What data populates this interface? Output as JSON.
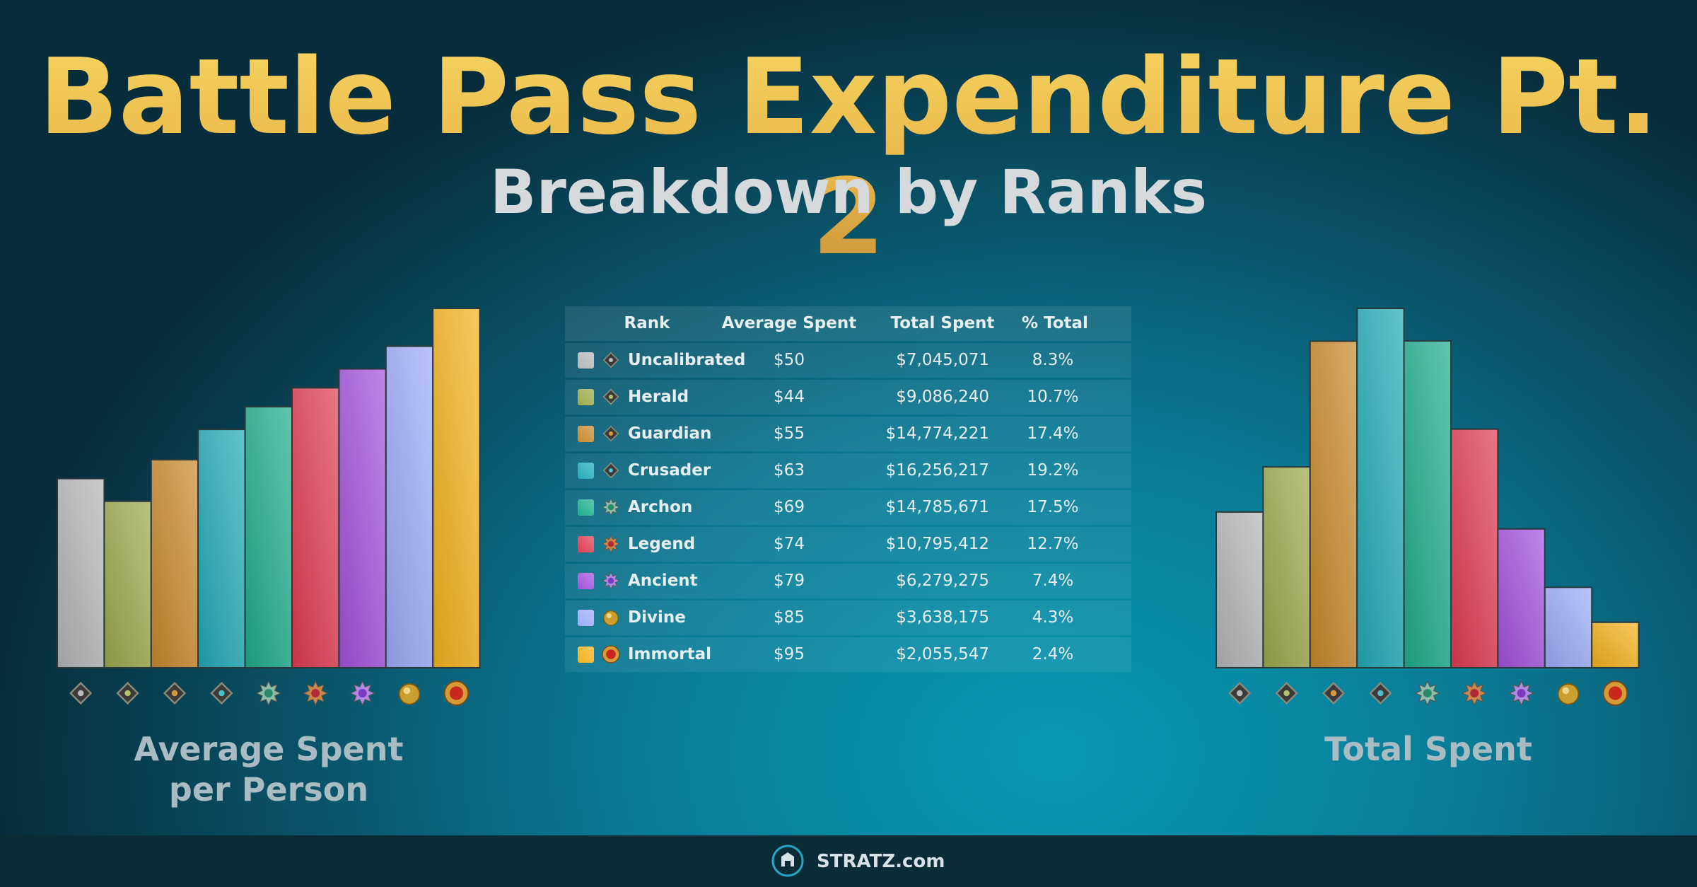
{
  "title": "Battle Pass Expenditure Pt. 2",
  "subtitle": "Breakdown by Ranks",
  "chart_data": [
    {
      "type": "bar",
      "title": "Average Spent per Person",
      "categories": [
        "Uncalibrated",
        "Herald",
        "Guardian",
        "Crusader",
        "Archon",
        "Legend",
        "Ancient",
        "Divine",
        "Immortal"
      ],
      "values": [
        50,
        44,
        55,
        63,
        69,
        74,
        79,
        85,
        95
      ],
      "value_labels": [
        "$50",
        "$44",
        "$55",
        "$63",
        "$69",
        "$74",
        "$79",
        "$85",
        "$95"
      ],
      "colors": [
        "#b4b6b8",
        "#9caa4c",
        "#c98a2c",
        "#22aab8",
        "#1fae8c",
        "#e03c52",
        "#a452dc",
        "#9eacf8",
        "#f6b21e"
      ]
    },
    {
      "type": "bar",
      "title": "Total Spent",
      "categories": [
        "Uncalibrated",
        "Herald",
        "Guardian",
        "Crusader",
        "Archon",
        "Legend",
        "Ancient",
        "Divine",
        "Immortal"
      ],
      "values": [
        7045071,
        9086240,
        14774221,
        16256217,
        14785671,
        10795412,
        6279275,
        3638175,
        2055547
      ],
      "value_labels": [
        "$7,045,071",
        "$9,086,240",
        "$14,774,221",
        "$16,256,217",
        "$14,785,671",
        "$10,795,412",
        "$6,279,275",
        "$3,638,175",
        "$2,055,547"
      ],
      "colors": [
        "#b4b6b8",
        "#9caa4c",
        "#c98a2c",
        "#22aab8",
        "#1fae8c",
        "#e03c52",
        "#a452dc",
        "#9eacf8",
        "#f6b21e"
      ]
    }
  ],
  "table": {
    "columns": [
      "Rank",
      "Average Spent",
      "Total Spent",
      "% Total"
    ],
    "percent_total": [
      "8.3%",
      "10.7%",
      "17.4%",
      "19.2%",
      "17.5%",
      "12.7%",
      "7.4%",
      "4.3%",
      "2.4%"
    ]
  },
  "footer": "STRATZ.com"
}
